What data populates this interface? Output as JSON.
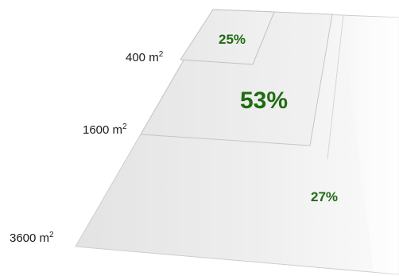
{
  "diagram": {
    "levels": [
      {
        "area_value": "400 m",
        "area_exponent": "2",
        "percent": "25%"
      },
      {
        "area_value": "1600 m",
        "area_exponent": "2",
        "percent": "53%"
      },
      {
        "area_value": "3600 m",
        "area_exponent": "2",
        "percent": "27%"
      }
    ]
  },
  "colors": {
    "percent_text": "#1f6b12",
    "label_text": "#1a1a1a",
    "panel_fill": "#efefef",
    "panel_edge": "#c9c9c9"
  }
}
